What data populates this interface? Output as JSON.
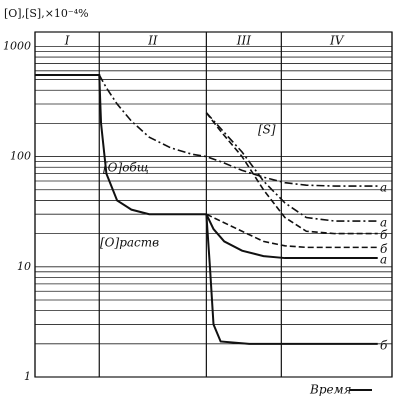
{
  "chart_data": {
    "type": "line",
    "y_label": "[O],[S],×10⁻⁴%",
    "x_label": "Время",
    "log_y": true,
    "grid": true,
    "ylim": [
      1,
      1350
    ],
    "yticks": [
      1,
      10,
      100,
      1000
    ],
    "minor_yticks": [
      2,
      3,
      4,
      5,
      6,
      7,
      8,
      9,
      20,
      30,
      40,
      50,
      60,
      70,
      80,
      90,
      200,
      300,
      400,
      500,
      600,
      700,
      800,
      900
    ],
    "xlim": [
      0,
      100
    ],
    "regions": [
      "I",
      "II",
      "III",
      "IV"
    ],
    "region_bounds": [
      0,
      18,
      48,
      69,
      100
    ],
    "series": [
      {
        "name": "[O]общ",
        "style": "dashdot",
        "end_label": "а",
        "x": [
          0,
          18,
          20,
          23,
          27,
          32,
          38,
          44,
          48,
          52,
          58,
          64,
          70,
          76,
          84,
          96
        ],
        "values": [
          550,
          550,
          420,
          300,
          210,
          150,
          120,
          105,
          100,
          90,
          75,
          65,
          58,
          55,
          54,
          54
        ]
      },
      {
        "name": "[S]",
        "style": "dashdot",
        "end_label": "а",
        "x": [
          48,
          52,
          58,
          64,
          70,
          76,
          84,
          96
        ],
        "values": [
          250,
          180,
          110,
          60,
          38,
          28,
          26,
          26
        ]
      },
      {
        "style": "dashed",
        "end_label": "б",
        "x": [
          48,
          52,
          58,
          64,
          70,
          76,
          84,
          96
        ],
        "values": [
          250,
          170,
          100,
          50,
          28,
          21,
          20,
          20
        ]
      },
      {
        "style": "dashed",
        "end_label": "б",
        "x": [
          48,
          52,
          58,
          64,
          70,
          76,
          84,
          96
        ],
        "values": [
          30,
          26,
          21,
          17,
          15.5,
          15,
          15,
          15
        ]
      },
      {
        "name": "[O]раств",
        "style": "solid",
        "x": [
          0,
          18,
          18.5,
          20,
          23,
          27,
          32,
          40,
          48
        ],
        "values": [
          550,
          550,
          200,
          70,
          40,
          33,
          30,
          30,
          30
        ]
      },
      {
        "style": "solid",
        "end_label": "а",
        "x": [
          48,
          50,
          53,
          58,
          64,
          70,
          84,
          96
        ],
        "values": [
          30,
          22,
          17,
          14,
          12.5,
          12,
          12,
          12
        ]
      },
      {
        "style": "solid",
        "end_label": "б",
        "x": [
          48,
          49,
          50,
          52,
          60,
          84,
          96
        ],
        "values": [
          30,
          10,
          3,
          2.1,
          2,
          2,
          2
        ]
      }
    ]
  }
}
